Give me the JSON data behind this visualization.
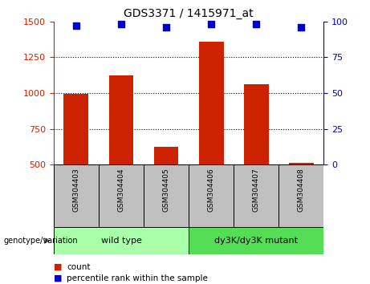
{
  "title": "GDS3371 / 1415971_at",
  "samples": [
    "GSM304403",
    "GSM304404",
    "GSM304405",
    "GSM304406",
    "GSM304407",
    "GSM304408"
  ],
  "counts": [
    995,
    1125,
    625,
    1360,
    1060,
    515
  ],
  "percentile_ranks": [
    97,
    98,
    96,
    98,
    98,
    96
  ],
  "ylim_left": [
    500,
    1500
  ],
  "ylim_right": [
    0,
    100
  ],
  "yticks_left": [
    500,
    750,
    1000,
    1250,
    1500
  ],
  "yticks_right": [
    0,
    25,
    50,
    75,
    100
  ],
  "bar_color": "#cc2200",
  "dot_color": "#0000cc",
  "background_plot": "#ffffff",
  "gray_box_color": "#c0c0c0",
  "group1_label": "wild type",
  "group2_label": "dy3K/dy3K mutant",
  "group1_indices": [
    0,
    1,
    2
  ],
  "group2_indices": [
    3,
    4,
    5
  ],
  "group1_color": "#aaffaa",
  "group2_color": "#55dd55",
  "genotype_label": "genotype/variation",
  "legend_count": "count",
  "legend_percentile": "percentile rank within the sample",
  "left_tick_color": "#cc2200",
  "right_tick_color": "#0000cc",
  "grid_yticks": [
    750,
    1000,
    1250
  ],
  "bar_width": 0.55,
  "dot_size": 28
}
